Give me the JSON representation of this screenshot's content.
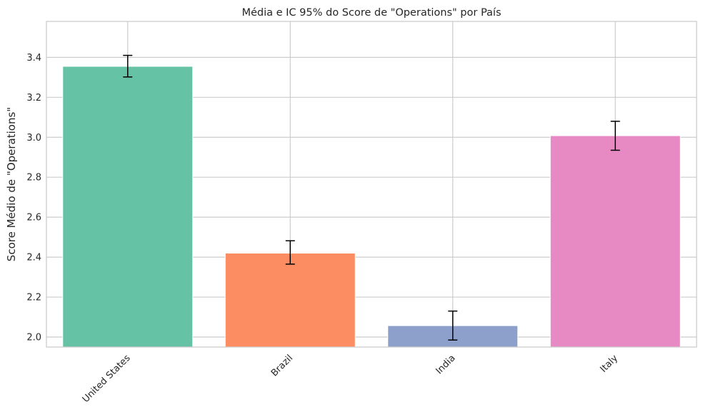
{
  "chart_data": {
    "type": "bar",
    "title": "Média e IC 95% do Score de \"Operations\" por País",
    "xlabel": "",
    "ylabel": "Score Médio de \"Operations\"",
    "categories": [
      "United States",
      "Brazil",
      "India",
      "Italy"
    ],
    "values": [
      3.355,
      2.42,
      2.057,
      3.008
    ],
    "ci_lower": [
      3.302,
      2.365,
      1.985,
      2.935
    ],
    "ci_upper": [
      3.41,
      2.482,
      2.13,
      3.08
    ],
    "colors": [
      "#66c2a5",
      "#fc8d62",
      "#8da0cb",
      "#e78ac3"
    ],
    "ylim": [
      1.95,
      3.58
    ],
    "yticks": [
      2.0,
      2.2,
      2.4,
      2.6,
      2.8,
      3.0,
      3.2,
      3.4
    ],
    "grid": true,
    "legend": "none"
  }
}
